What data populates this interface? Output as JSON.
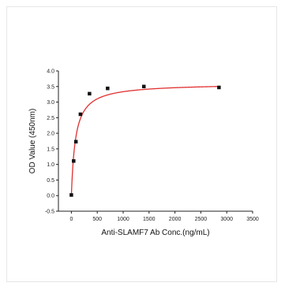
{
  "chart_data": {
    "type": "scatter",
    "xlabel": "Anti-SLAMF7 Ab Conc.(ng/mL)",
    "ylabel": "OD Value (450nm)",
    "xlim": [
      -250,
      3500
    ],
    "ylim": [
      -0.5,
      4.0
    ],
    "x_ticks": [
      0,
      500,
      1000,
      1500,
      2000,
      2500,
      3000,
      3500
    ],
    "y_ticks": [
      -0.5,
      0.0,
      0.5,
      1.0,
      1.5,
      2.0,
      2.5,
      3.0,
      3.5,
      4.0
    ],
    "points": [
      {
        "x": 0,
        "y": 0.02
      },
      {
        "x": 44,
        "y": 1.11
      },
      {
        "x": 88,
        "y": 1.73
      },
      {
        "x": 175,
        "y": 2.61
      },
      {
        "x": 350,
        "y": 3.27
      },
      {
        "x": 700,
        "y": 3.44
      },
      {
        "x": 1400,
        "y": 3.5
      },
      {
        "x": 2850,
        "y": 3.47
      }
    ],
    "fit": {
      "type": "hyperbolic",
      "ymax": 3.6,
      "k": 80
    },
    "grid": false,
    "colors": {
      "points": "#111111",
      "fit": "#e03030",
      "axis": "#222222"
    }
  }
}
